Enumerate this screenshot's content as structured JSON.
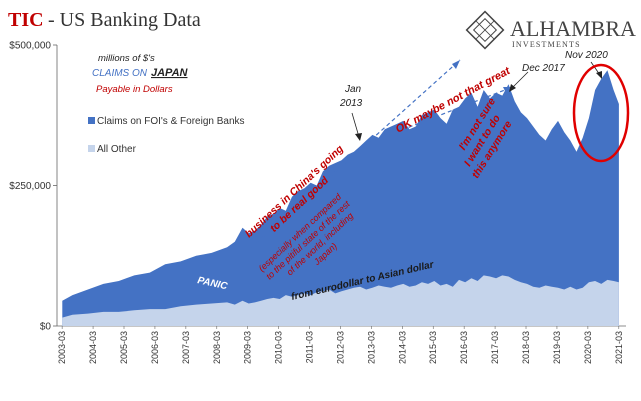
{
  "header": {
    "title_prefix": "TIC",
    "title_suffix": " - US Banking Data",
    "logo_name": "ALHAMBRA",
    "logo_sub": "INVESTMENTS"
  },
  "colors": {
    "title_red": "#c00000",
    "series_dark": "#4472c4",
    "series_light": "#c5d4eb",
    "annotation_red": "#c00000",
    "arrow_blue": "#4472c4",
    "circle_red": "#e00000",
    "axis": "#666666"
  },
  "chart_data": {
    "type": "area",
    "stacked": false,
    "ylim": [
      0,
      500000
    ],
    "yticks": [
      0,
      250000,
      500000
    ],
    "ytick_labels": [
      "$0",
      "$250,000",
      "$500,000"
    ],
    "xlabels": [
      "2003-03",
      "2004-03",
      "2005-03",
      "2006-03",
      "2007-03",
      "2008-03",
      "2009-03",
      "2010-03",
      "2011-03",
      "2012-03",
      "2013-03",
      "2014-03",
      "2015-03",
      "2016-03",
      "2017-03",
      "2018-03",
      "2019-03",
      "2020-03",
      "2021-03"
    ],
    "x": [
      2003.17,
      2003.5,
      2004.0,
      2004.5,
      2005.0,
      2005.5,
      2006.0,
      2006.5,
      2007.0,
      2007.5,
      2008.0,
      2008.5,
      2008.75,
      2009.0,
      2009.2,
      2009.4,
      2009.6,
      2009.8,
      2010.0,
      2010.2,
      2010.4,
      2010.6,
      2010.8,
      2011.0,
      2011.2,
      2011.4,
      2011.6,
      2011.8,
      2012.0,
      2012.2,
      2012.4,
      2012.6,
      2012.8,
      2013.0,
      2013.2,
      2013.4,
      2013.6,
      2013.8,
      2014.0,
      2014.2,
      2014.4,
      2014.6,
      2014.8,
      2015.0,
      2015.2,
      2015.4,
      2015.6,
      2015.8,
      2016.0,
      2016.2,
      2016.4,
      2016.6,
      2016.8,
      2017.0,
      2017.2,
      2017.4,
      2017.6,
      2017.8,
      2018.0,
      2018.2,
      2018.4,
      2018.6,
      2018.8,
      2019.0,
      2019.2,
      2019.4,
      2019.6,
      2019.8,
      2020.0,
      2020.2,
      2020.4,
      2020.6,
      2020.8,
      2021.0,
      2021.17
    ],
    "series": [
      {
        "name": "Claims on FOI's & Foreign Banks",
        "values": [
          45000,
          55000,
          65000,
          75000,
          80000,
          90000,
          95000,
          110000,
          115000,
          125000,
          130000,
          140000,
          150000,
          175000,
          165000,
          170000,
          180000,
          195000,
          200000,
          210000,
          205000,
          230000,
          240000,
          245000,
          255000,
          250000,
          275000,
          285000,
          290000,
          295000,
          305000,
          310000,
          320000,
          330000,
          340000,
          335000,
          350000,
          355000,
          360000,
          365000,
          350000,
          355000,
          375000,
          380000,
          385000,
          370000,
          360000,
          385000,
          390000,
          405000,
          415000,
          390000,
          420000,
          405000,
          415000,
          410000,
          430000,
          400000,
          380000,
          370000,
          355000,
          340000,
          330000,
          350000,
          365000,
          345000,
          330000,
          310000,
          335000,
          370000,
          420000,
          440000,
          455000,
          420000,
          395000
        ]
      },
      {
        "name": "All Other",
        "values": [
          15000,
          20000,
          22000,
          25000,
          25000,
          28000,
          30000,
          30000,
          35000,
          38000,
          40000,
          42000,
          38000,
          45000,
          40000,
          42000,
          45000,
          48000,
          50000,
          48000,
          55000,
          52000,
          55000,
          58000,
          55000,
          60000,
          62000,
          65000,
          58000,
          62000,
          65000,
          68000,
          70000,
          65000,
          68000,
          72000,
          70000,
          68000,
          72000,
          75000,
          70000,
          72000,
          78000,
          75000,
          80000,
          72000,
          75000,
          70000,
          82000,
          78000,
          85000,
          80000,
          90000,
          88000,
          85000,
          90000,
          88000,
          82000,
          78000,
          75000,
          70000,
          68000,
          72000,
          70000,
          68000,
          65000,
          70000,
          65000,
          68000,
          78000,
          80000,
          75000,
          82000,
          80000,
          78000
        ]
      }
    ],
    "legend": "left"
  },
  "annotations": {
    "units_line1": "millions of $'s",
    "claims_on": "CLAIMS ON",
    "japan": "JAPAN",
    "payable": "Payable in Dollars",
    "jan2013": [
      "Jan",
      "2013"
    ],
    "dec2017": "Dec 2017",
    "nov2020": "Nov 2020",
    "business": [
      "business in China's going",
      "to be real good"
    ],
    "especially": [
      "(especially when compared",
      "to the pitiful state of the rest",
      "of the world, including",
      "Japan)"
    ],
    "ok_maybe": "OK maybe not that great",
    "not_sure": [
      "I'm not  sure",
      "I want to do",
      "this anymore"
    ],
    "panic": "PANIC",
    "eurodollar": "from eurodollar to Asian dollar"
  }
}
